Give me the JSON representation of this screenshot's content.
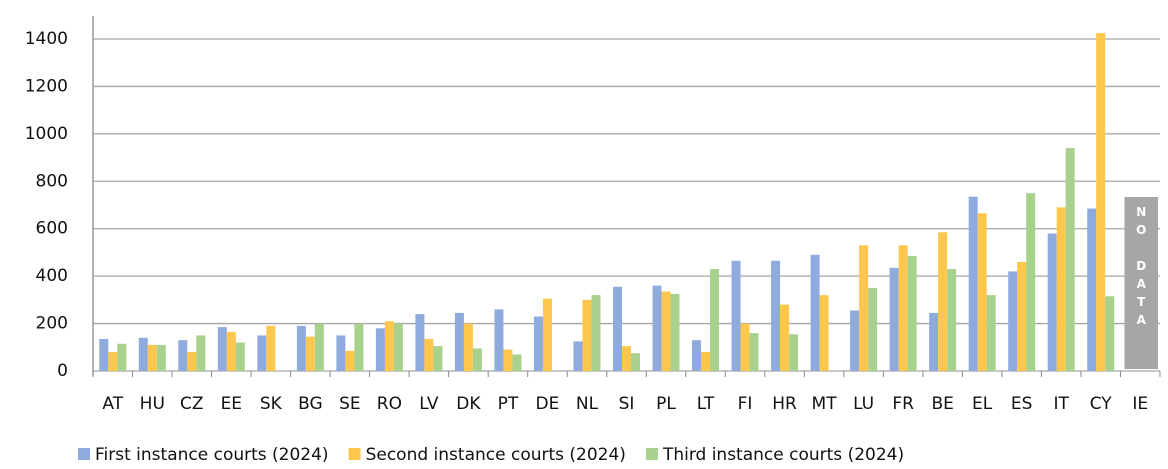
{
  "chart_data": {
    "type": "bar",
    "categories": [
      "AT",
      "HU",
      "CZ",
      "EE",
      "SK",
      "BG",
      "SE",
      "RO",
      "LV",
      "DK",
      "PT",
      "DE",
      "NL",
      "SI",
      "PL",
      "LT",
      "FI",
      "HR",
      "MT",
      "LU",
      "FR",
      "BE",
      "EL",
      "ES",
      "IT",
      "CY",
      "IE"
    ],
    "series": [
      {
        "name": "First instance courts (2024)",
        "color": "#8faadc",
        "values": [
          135,
          140,
          130,
          185,
          150,
          190,
          150,
          180,
          240,
          245,
          260,
          230,
          125,
          355,
          360,
          130,
          465,
          465,
          490,
          255,
          435,
          245,
          735,
          420,
          580,
          685,
          null
        ]
      },
      {
        "name": "Second instance courts (2024)",
        "color": "#fdc64c",
        "values": [
          80,
          110,
          80,
          165,
          190,
          145,
          85,
          210,
          135,
          200,
          90,
          305,
          300,
          105,
          335,
          80,
          200,
          280,
          320,
          530,
          530,
          585,
          665,
          460,
          690,
          1425,
          null
        ]
      },
      {
        "name": "Third instance courts (2024)",
        "color": "#a9d18e",
        "values": [
          115,
          110,
          150,
          120,
          null,
          200,
          200,
          200,
          105,
          95,
          70,
          null,
          320,
          75,
          325,
          430,
          160,
          155,
          null,
          350,
          485,
          430,
          320,
          750,
          940,
          315,
          null
        ]
      }
    ],
    "annotation": "NO DATA",
    "ylim": [
      0,
      1450
    ],
    "yticks": [
      0,
      200,
      400,
      600,
      800,
      1000,
      1200,
      1400
    ],
    "grid": true
  }
}
